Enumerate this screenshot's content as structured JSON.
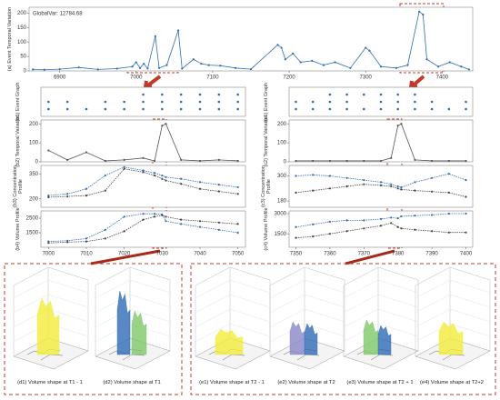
{
  "chart_data": [
    {
      "type": "line",
      "title": "GlobalVar: 12784.68",
      "y_label": "(a) Event Temporal Variation",
      "color": "#2e6db4",
      "x": [
        6865,
        6880,
        6900,
        6925,
        6950,
        6975,
        6995,
        7000,
        7005,
        7010,
        7015,
        7025,
        7030,
        7040,
        7055,
        7060,
        7075,
        7085,
        7095,
        7110,
        7130,
        7150,
        7185,
        7190,
        7195,
        7205,
        7215,
        7230,
        7245,
        7260,
        7280,
        7300,
        7305,
        7320,
        7340,
        7355,
        7370,
        7375,
        7380,
        7395,
        7410,
        7425,
        7435
      ],
      "values": [
        5,
        4,
        6,
        12,
        5,
        8,
        15,
        30,
        10,
        25,
        8,
        120,
        10,
        20,
        140,
        8,
        40,
        25,
        20,
        18,
        10,
        6,
        90,
        80,
        40,
        60,
        30,
        35,
        20,
        30,
        10,
        80,
        70,
        15,
        10,
        20,
        205,
        195,
        40,
        15,
        30,
        15,
        5
      ],
      "xlim": [
        6860,
        7440
      ],
      "ylim": [
        0,
        220
      ],
      "xticks": [
        6900,
        7000,
        7100,
        7200,
        7300,
        7400
      ],
      "yticks": [
        0,
        50,
        100,
        150,
        200
      ]
    },
    {
      "type": "scatter",
      "y_label": "(b1) Event Graph",
      "x": [
        7000,
        7005,
        7010,
        7015,
        7020,
        7025,
        7030,
        7035,
        7040,
        7045,
        7050
      ],
      "series": [
        {
          "color": "#2e6db4",
          "values": [
            1,
            1,
            1,
            1,
            1,
            1,
            1,
            1,
            1,
            1,
            1
          ]
        },
        {
          "color": "#2e6db4",
          "values": [
            2,
            2,
            null,
            2,
            2,
            2,
            2,
            2,
            2,
            2,
            2
          ]
        },
        {
          "color": "#2e6db4",
          "values": [
            null,
            null,
            null,
            null,
            null,
            3,
            3,
            3,
            3,
            3,
            3
          ]
        }
      ],
      "xlim": [
        6998,
        7052
      ],
      "ylim": [
        0,
        4
      ]
    },
    {
      "type": "line",
      "y_label": "(b2) Temporal Variation",
      "color": "#555555",
      "x": [
        7000,
        7005,
        7010,
        7015,
        7020,
        7025,
        7028,
        7030,
        7031,
        7035,
        7040,
        7045,
        7050
      ],
      "values": [
        60,
        10,
        50,
        5,
        10,
        20,
        5,
        190,
        200,
        10,
        5,
        10,
        5
      ],
      "xlim": [
        6998,
        7052
      ],
      "ylim": [
        0,
        220
      ],
      "yticks": [
        0,
        100,
        200
      ]
    },
    {
      "type": "line",
      "y_label": "(b3) Concentration Profile",
      "x": [
        7000,
        7005,
        7010,
        7015,
        7020,
        7025,
        7028,
        7030,
        7031,
        7035,
        7040,
        7045,
        7050
      ],
      "series": [
        {
          "color": "#2e6db4",
          "values": [
            220,
            230,
            260,
            340,
            390,
            370,
            355,
            340,
            330,
            320,
            300,
            285,
            270
          ]
        },
        {
          "color": "#444444",
          "values": [
            210,
            215,
            220,
            250,
            380,
            360,
            340,
            320,
            310,
            290,
            260,
            245,
            230
          ]
        }
      ],
      "xlim": [
        6998,
        7052
      ],
      "ylim": [
        150,
        400
      ],
      "yticks": [
        200,
        350
      ]
    },
    {
      "type": "line",
      "y_label": "(b4) Volume Profile",
      "x": [
        7000,
        7005,
        7010,
        7015,
        7020,
        7025,
        7028,
        7030,
        7031,
        7035,
        7040,
        7045,
        7050
      ],
      "series": [
        {
          "color": "#2e6db4",
          "values": [
            900,
            950,
            1100,
            1700,
            2600,
            2800,
            2800,
            2750,
            2300,
            2100,
            1900,
            1700,
            1500
          ]
        },
        {
          "color": "#444444",
          "values": [
            800,
            850,
            900,
            1100,
            1600,
            2400,
            2600,
            2700,
            2600,
            2400,
            2300,
            2200,
            2100
          ]
        }
      ],
      "xlim": [
        6998,
        7052
      ],
      "ylim": [
        500,
        3000
      ],
      "yticks": [
        1500,
        2500
      ],
      "xticks": [
        7000,
        7010,
        7020,
        7030,
        7040,
        7050
      ]
    },
    {
      "type": "scatter",
      "y_label": "(c1) Event Graph",
      "x": [
        7350,
        7355,
        7360,
        7365,
        7370,
        7375,
        7380,
        7385,
        7390,
        7395,
        7400
      ],
      "series": [
        {
          "color": "#2e6db4",
          "values": [
            1,
            1,
            1,
            1,
            1,
            1,
            1,
            1,
            1,
            1,
            1
          ]
        },
        {
          "color": "#2e6db4",
          "values": [
            2,
            2,
            2,
            2,
            null,
            2,
            2,
            2,
            2,
            null,
            2
          ]
        },
        {
          "color": "#2e6db4",
          "values": [
            null,
            null,
            3,
            3,
            3,
            3,
            3,
            3,
            null,
            null,
            null
          ]
        }
      ],
      "xlim": [
        7348,
        7402
      ],
      "ylim": [
        0,
        4
      ]
    },
    {
      "type": "line",
      "y_label": "(c2) Temporal Variation",
      "color": "#555555",
      "x": [
        7350,
        7355,
        7360,
        7365,
        7370,
        7375,
        7378,
        7380,
        7381,
        7385,
        7390,
        7395,
        7400
      ],
      "values": [
        5,
        5,
        5,
        5,
        5,
        5,
        20,
        190,
        200,
        10,
        5,
        5,
        5
      ],
      "xlim": [
        7348,
        7402
      ],
      "ylim": [
        0,
        220
      ],
      "yticks": [
        0,
        100,
        200
      ]
    },
    {
      "type": "line",
      "y_label": "(c3) Concentration Profile",
      "x": [
        7350,
        7355,
        7360,
        7365,
        7370,
        7375,
        7378,
        7380,
        7381,
        7385,
        7390,
        7395,
        7400
      ],
      "series": [
        {
          "color": "#2e6db4",
          "values": [
            300,
            305,
            300,
            290,
            280,
            270,
            260,
            250,
            245,
            270,
            290,
            310,
            280
          ]
        },
        {
          "color": "#444444",
          "values": [
            220,
            230,
            240,
            250,
            260,
            255,
            250,
            240,
            235,
            230,
            225,
            220,
            200
          ]
        }
      ],
      "xlim": [
        7348,
        7402
      ],
      "ylim": [
        150,
        350
      ],
      "yticks": [
        180,
        300
      ]
    },
    {
      "type": "line",
      "y_label": "(c4) Volume Profile",
      "x": [
        7350,
        7355,
        7360,
        7365,
        7370,
        7375,
        7378,
        7380,
        7381,
        7385,
        7390,
        7395,
        7400
      ],
      "series": [
        {
          "color": "#2e6db4",
          "values": [
            2000,
            2200,
            2400,
            2500,
            2500,
            2600,
            2700,
            2650,
            2800,
            2850,
            2900,
            3000,
            3000
          ]
        },
        {
          "color": "#444444",
          "values": [
            1200,
            1300,
            1500,
            1700,
            1900,
            2100,
            2300,
            2000,
            1900,
            1800,
            1700,
            1600,
            1600
          ]
        }
      ],
      "xlim": [
        7348,
        7402
      ],
      "ylim": [
        500,
        3200
      ],
      "yticks": [
        1500,
        3000
      ],
      "xticks": [
        7350,
        7360,
        7370,
        7380,
        7390,
        7400
      ]
    }
  ],
  "figure": {
    "captions": [
      "(d1) Volume shape at T1 - 1",
      "(d2) Volume shape at T1",
      "(e1) Volume shape at T2 - 1",
      "(e2) Volume shape at T2",
      "(e3) Volume shape at T2 + 1",
      "(e4) Volume shape at T2+2"
    ]
  }
}
